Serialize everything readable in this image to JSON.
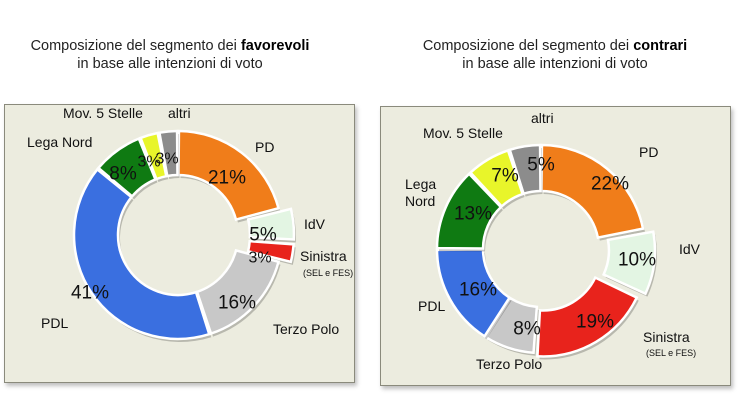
{
  "titles": {
    "left": {
      "line1_pre": "Composizione del segmento dei ",
      "line1_bold": "favorevoli",
      "line2": "in base alle intenzioni di voto"
    },
    "right": {
      "line1_pre": "Composizione del segmento dei ",
      "line1_bold": "contrari",
      "line2": "in base alle intenzioni di voto"
    }
  },
  "chart_data": [
    {
      "type": "pie",
      "variant": "donut",
      "title": "Composizione del segmento dei favorevoli in base alle intenzioni di voto",
      "slices": [
        {
          "name": "PD",
          "value": 21,
          "label": "21%",
          "color": "#f07d1a"
        },
        {
          "name": "IdV",
          "value": 5,
          "label": "5%",
          "color": "#e3f5e3"
        },
        {
          "name": "Sinistra",
          "sublabel": "(SEL e FES)",
          "value": 3,
          "label": "3%",
          "color": "#e8231c"
        },
        {
          "name": "Terzo Polo",
          "value": 16,
          "label": "16%",
          "color": "#c8c8c8"
        },
        {
          "name": "PDL",
          "value": 41,
          "label": "41%",
          "color": "#3a6fe0"
        },
        {
          "name": "Lega Nord",
          "value": 8,
          "label": "8%",
          "color": "#0f7a12"
        },
        {
          "name": "Mov. 5 Stelle",
          "value": 3,
          "label": "3%",
          "color": "#e8f52a"
        },
        {
          "name": "altri",
          "value": 3,
          "label": "3%",
          "color": "#8c8c8c"
        }
      ]
    },
    {
      "type": "pie",
      "variant": "donut",
      "title": "Composizione del segmento dei contrari in base alle intenzioni di voto",
      "slices": [
        {
          "name": "PD",
          "value": 22,
          "label": "22%",
          "color": "#f07d1a"
        },
        {
          "name": "IdV",
          "value": 10,
          "label": "10%",
          "color": "#e3f5e3"
        },
        {
          "name": "Sinistra",
          "sublabel": "(SEL e FES)",
          "value": 19,
          "label": "19%",
          "color": "#e8231c"
        },
        {
          "name": "Terzo Polo",
          "value": 8,
          "label": "8%",
          "color": "#c8c8c8"
        },
        {
          "name": "PDL",
          "value": 16,
          "label": "16%",
          "color": "#3a6fe0"
        },
        {
          "name": "Lega Nord",
          "value": 13,
          "label": "13%",
          "color": "#0f7a12"
        },
        {
          "name": "Mov. 5 Stelle",
          "value": 7,
          "label": "7%",
          "color": "#e8f52a"
        },
        {
          "name": "altri",
          "value": 5,
          "label": "5%",
          "color": "#8c8c8c"
        }
      ]
    }
  ]
}
